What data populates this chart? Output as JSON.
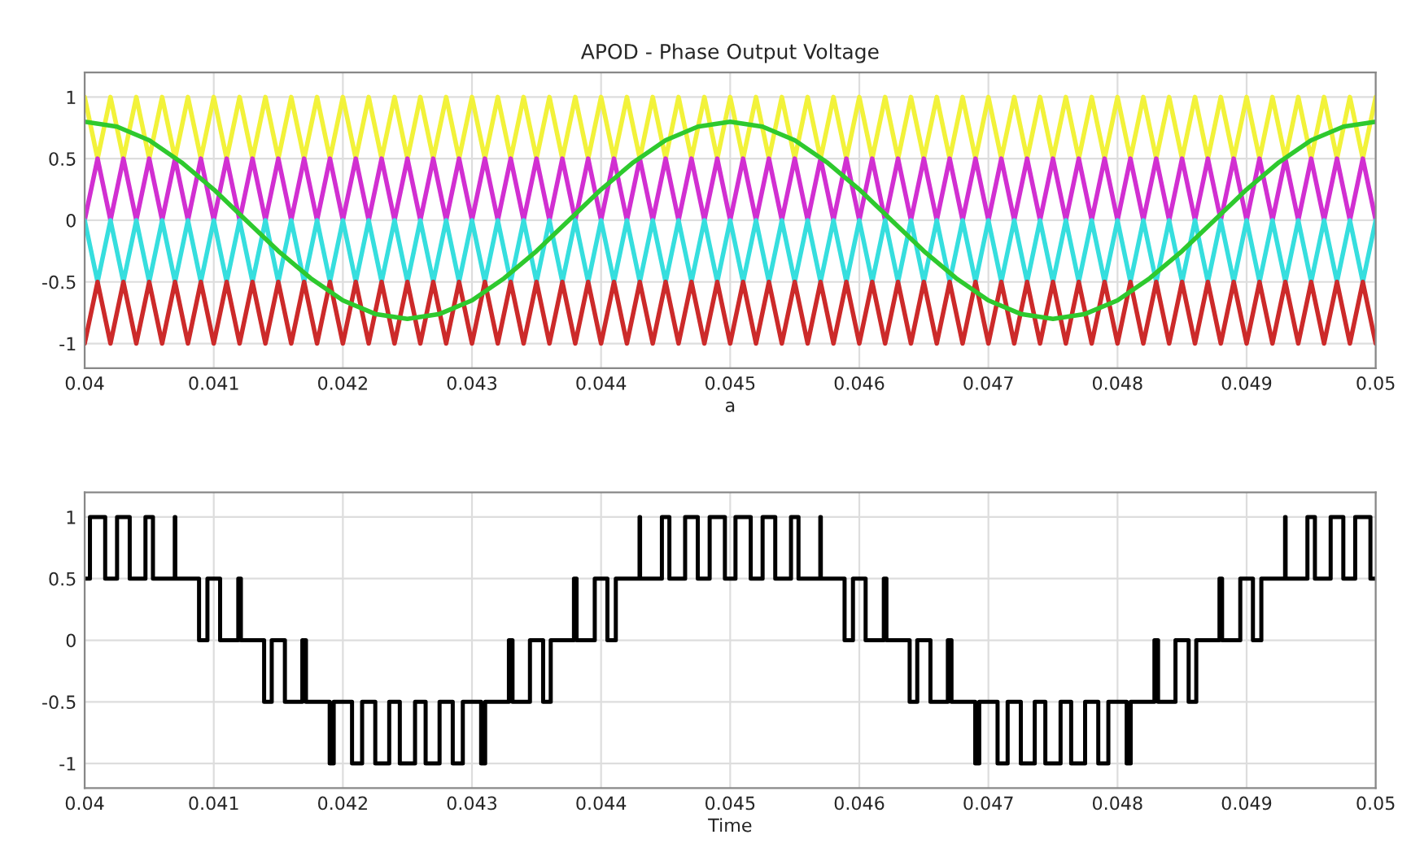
{
  "chart_data": [
    {
      "type": "line",
      "title": "APOD - Phase Output Voltage",
      "xlabel": "a",
      "grid": true,
      "xlim": [
        0.04,
        0.05
      ],
      "ylim": [
        -1.2,
        1.2
      ],
      "xticks": [
        0.04,
        0.041,
        0.042,
        0.043,
        0.044,
        0.045,
        0.046,
        0.047,
        0.048,
        0.049,
        0.05
      ],
      "yticks": [
        -1,
        -0.5,
        0,
        0.5,
        1
      ],
      "x": [
        0.04,
        0.0401,
        0.0402,
        0.0403,
        0.0404,
        0.0405,
        0.0406,
        0.0407,
        0.0408,
        0.0409,
        0.041,
        0.0411,
        0.0412,
        0.0413,
        0.0414,
        0.0415,
        0.0416,
        0.0417,
        0.0418,
        0.0419,
        0.042,
        0.0421,
        0.0422,
        0.0423,
        0.0424,
        0.0425,
        0.0426,
        0.0427,
        0.0428,
        0.0429,
        0.043,
        0.0431,
        0.0432,
        0.0433,
        0.0434,
        0.0435,
        0.0436,
        0.0437,
        0.0438,
        0.0439,
        0.044,
        0.0441,
        0.0442,
        0.0443,
        0.0444,
        0.0445,
        0.0446,
        0.0447,
        0.0448,
        0.0449,
        0.045,
        0.0451,
        0.0452,
        0.0453,
        0.0454,
        0.0455,
        0.0456,
        0.0457,
        0.0458,
        0.0459,
        0.046,
        0.0461,
        0.0462,
        0.0463,
        0.0464,
        0.0465,
        0.0466,
        0.0467,
        0.0468,
        0.0469,
        0.047,
        0.0471,
        0.0472,
        0.0473,
        0.0474,
        0.0475,
        0.0476,
        0.0477,
        0.0478,
        0.0479,
        0.048,
        0.0481,
        0.0482,
        0.0483,
        0.0484,
        0.0485,
        0.0486,
        0.0487,
        0.0488,
        0.0489,
        0.049,
        0.0491,
        0.0492,
        0.0493,
        0.0494,
        0.0495,
        0.0496,
        0.0497,
        0.0498,
        0.0499,
        0.05
      ],
      "series": [
        {
          "color": "#f2f23a",
          "values": [
            1,
            0.5,
            1,
            0.5,
            1,
            0.5,
            1,
            0.5,
            1,
            0.5,
            1,
            0.5,
            1,
            0.5,
            1,
            0.5,
            1,
            0.5,
            1,
            0.5,
            1,
            0.5,
            1,
            0.5,
            1,
            0.5,
            1,
            0.5,
            1,
            0.5,
            1,
            0.5,
            1,
            0.5,
            1,
            0.5,
            1,
            0.5,
            1,
            0.5,
            1,
            0.5,
            1,
            0.5,
            1,
            0.5,
            1,
            0.5,
            1,
            0.5,
            1,
            0.5,
            1,
            0.5,
            1,
            0.5,
            1,
            0.5,
            1,
            0.5,
            1,
            0.5,
            1,
            0.5,
            1,
            0.5,
            1,
            0.5,
            1,
            0.5,
            1,
            0.5,
            1,
            0.5,
            1,
            0.5,
            1,
            0.5,
            1,
            0.5,
            1,
            0.5,
            1,
            0.5,
            1,
            0.5,
            1,
            0.5,
            1,
            0.5,
            1,
            0.5,
            1,
            0.5,
            1,
            0.5,
            1,
            0.5,
            1,
            0.5,
            1
          ]
        },
        {
          "color": "#d12fd1",
          "values": [
            0,
            0.5,
            0,
            0.5,
            0,
            0.5,
            0,
            0.5,
            0,
            0.5,
            0,
            0.5,
            0,
            0.5,
            0,
            0.5,
            0,
            0.5,
            0,
            0.5,
            0,
            0.5,
            0,
            0.5,
            0,
            0.5,
            0,
            0.5,
            0,
            0.5,
            0,
            0.5,
            0,
            0.5,
            0,
            0.5,
            0,
            0.5,
            0,
            0.5,
            0,
            0.5,
            0,
            0.5,
            0,
            0.5,
            0,
            0.5,
            0,
            0.5,
            0,
            0.5,
            0,
            0.5,
            0,
            0.5,
            0,
            0.5,
            0,
            0.5,
            0,
            0.5,
            0,
            0.5,
            0,
            0.5,
            0,
            0.5,
            0,
            0.5,
            0,
            0.5,
            0,
            0.5,
            0,
            0.5,
            0,
            0.5,
            0,
            0.5,
            0,
            0.5,
            0,
            0.5,
            0,
            0.5,
            0,
            0.5,
            0,
            0.5,
            0,
            0.5,
            0,
            0.5,
            0,
            0.5,
            0,
            0.5,
            0,
            0.5,
            0
          ]
        },
        {
          "color": "#36dede",
          "values": [
            0,
            -0.5,
            0,
            -0.5,
            0,
            -0.5,
            0,
            -0.5,
            0,
            -0.5,
            0,
            -0.5,
            0,
            -0.5,
            0,
            -0.5,
            0,
            -0.5,
            0,
            -0.5,
            0,
            -0.5,
            0,
            -0.5,
            0,
            -0.5,
            0,
            -0.5,
            0,
            -0.5,
            0,
            -0.5,
            0,
            -0.5,
            0,
            -0.5,
            0,
            -0.5,
            0,
            -0.5,
            0,
            -0.5,
            0,
            -0.5,
            0,
            -0.5,
            0,
            -0.5,
            0,
            -0.5,
            0,
            -0.5,
            0,
            -0.5,
            0,
            -0.5,
            0,
            -0.5,
            0,
            -0.5,
            0,
            -0.5,
            0,
            -0.5,
            0,
            -0.5,
            0,
            -0.5,
            0,
            -0.5,
            0,
            -0.5,
            0,
            -0.5,
            0,
            -0.5,
            0,
            -0.5,
            0,
            -0.5,
            0,
            -0.5,
            0,
            -0.5,
            0,
            -0.5,
            0,
            -0.5,
            0,
            -0.5,
            0,
            -0.5,
            0,
            -0.5,
            0,
            -0.5,
            0,
            -0.5,
            0,
            -0.5,
            0
          ]
        },
        {
          "color": "#cc2a2a",
          "values": [
            -1,
            -0.5,
            -1,
            -0.5,
            -1,
            -0.5,
            -1,
            -0.5,
            -1,
            -0.5,
            -1,
            -0.5,
            -1,
            -0.5,
            -1,
            -0.5,
            -1,
            -0.5,
            -1,
            -0.5,
            -1,
            -0.5,
            -1,
            -0.5,
            -1,
            -0.5,
            -1,
            -0.5,
            -1,
            -0.5,
            -1,
            -0.5,
            -1,
            -0.5,
            -1,
            -0.5,
            -1,
            -0.5,
            -1,
            -0.5,
            -1,
            -0.5,
            -1,
            -0.5,
            -1,
            -0.5,
            -1,
            -0.5,
            -1,
            -0.5,
            -1,
            -0.5,
            -1,
            -0.5,
            -1,
            -0.5,
            -1,
            -0.5,
            -1,
            -0.5,
            -1,
            -0.5,
            -1,
            -0.5,
            -1,
            -0.5,
            -1,
            -0.5,
            -1,
            -0.5,
            -1,
            -0.5,
            -1,
            -0.5,
            -1,
            -0.5,
            -1,
            -0.5,
            -1,
            -0.5,
            -1,
            -0.5,
            -1,
            -0.5,
            -1,
            -0.5,
            -1,
            -0.5,
            -1,
            -0.5,
            -1,
            -0.5,
            -1,
            -0.5,
            -1,
            -0.5,
            -1,
            -0.5,
            -1,
            -0.5,
            -1
          ]
        },
        {
          "color": "#2ec92e",
          "x": [
            0.04,
            0.04025,
            0.0405,
            0.04075,
            0.041,
            0.04125,
            0.0415,
            0.04175,
            0.042,
            0.04225,
            0.0425,
            0.04275,
            0.043,
            0.04325,
            0.0435,
            0.04375,
            0.044,
            0.04425,
            0.0445,
            0.04475,
            0.045,
            0.04525,
            0.0455,
            0.04575,
            0.046,
            0.04625,
            0.0465,
            0.04675,
            0.047,
            0.04725,
            0.0475,
            0.04775,
            0.048,
            0.04825,
            0.0485,
            0.04875,
            0.049,
            0.04925,
            0.0495,
            0.04975,
            0.05
          ],
          "values": [
            0.8,
            0.76,
            0.65,
            0.47,
            0.25,
            0,
            -0.25,
            -0.47,
            -0.65,
            -0.76,
            -0.8,
            -0.76,
            -0.65,
            -0.47,
            -0.25,
            0,
            0.25,
            0.47,
            0.65,
            0.76,
            0.8,
            0.76,
            0.65,
            0.47,
            0.25,
            0,
            -0.25,
            -0.47,
            -0.65,
            -0.76,
            -0.8,
            -0.76,
            -0.65,
            -0.47,
            -0.25,
            0,
            0.25,
            0.47,
            0.65,
            0.76,
            0.8
          ]
        }
      ]
    },
    {
      "type": "step",
      "xlabel": "Time",
      "grid": true,
      "xlim": [
        0.04,
        0.05
      ],
      "ylim": [
        -1.2,
        1.2
      ],
      "xticks": [
        0.04,
        0.041,
        0.042,
        0.043,
        0.044,
        0.045,
        0.046,
        0.047,
        0.048,
        0.049,
        0.05
      ],
      "yticks": [
        -1,
        -0.5,
        0,
        0.5,
        1
      ],
      "series": [
        {
          "color": "#000000",
          "x": [
            0.04,
            0.040041,
            0.040159,
            0.040251,
            0.040349,
            0.040471,
            0.040529,
            0.040698,
            0.040702,
            0.040886,
            0.040951,
            0.041049,
            0.04119,
            0.04121,
            0.04139,
            0.041449,
            0.041551,
            0.041686,
            0.041714,
            0.041898,
            0.041929,
            0.042071,
            0.042149,
            0.042251,
            0.042359,
            0.042441,
            0.042559,
            0.042641,
            0.042749,
            0.042851,
            0.042929,
            0.043071,
            0.043102,
            0.043286,
            0.043314,
            0.043449,
            0.043551,
            0.04361,
            0.04379,
            0.04381,
            0.043951,
            0.044049,
            0.044114,
            0.044298,
            0.044302,
            0.044471,
            0.044529,
            0.044651,
            0.044749,
            0.044841,
            0.044959,
            0.045041,
            0.045159,
            0.045251,
            0.045349,
            0.045471,
            0.045529,
            0.045698,
            0.045702,
            0.045886,
            0.045951,
            0.046049,
            0.04619,
            0.04621,
            0.04639,
            0.046449,
            0.046551,
            0.046686,
            0.046714,
            0.046898,
            0.046929,
            0.047071,
            0.047149,
            0.047251,
            0.047359,
            0.047441,
            0.047559,
            0.047641,
            0.047749,
            0.047851,
            0.047929,
            0.048071,
            0.048102,
            0.048286,
            0.048314,
            0.048449,
            0.048551,
            0.04861,
            0.04879,
            0.04881,
            0.048951,
            0.049049,
            0.049114,
            0.049298,
            0.049302,
            0.049471,
            0.049529,
            0.049651,
            0.049749,
            0.049841,
            0.049959,
            0.05
          ],
          "values": [
            0.5,
            1,
            0.5,
            1,
            0.5,
            1,
            0.5,
            1,
            0.5,
            0,
            0.5,
            0,
            0.5,
            0,
            -0.5,
            0,
            -0.5,
            0,
            -0.5,
            -1,
            -0.5,
            -1,
            -0.5,
            -1,
            -0.5,
            -1,
            -0.5,
            -1,
            -0.5,
            -1,
            -0.5,
            -1,
            -0.5,
            0,
            -0.5,
            0,
            -0.5,
            0,
            0.5,
            0,
            0.5,
            0,
            0.5,
            1,
            0.5,
            1,
            0.5,
            1,
            0.5,
            1,
            0.5,
            1,
            0.5,
            1,
            0.5,
            1,
            0.5,
            1,
            0.5,
            0,
            0.5,
            0,
            0.5,
            0,
            -0.5,
            0,
            -0.5,
            0,
            -0.5,
            -1,
            -0.5,
            -1,
            -0.5,
            -1,
            -0.5,
            -1,
            -0.5,
            -1,
            -0.5,
            -1,
            -0.5,
            -1,
            -0.5,
            0,
            -0.5,
            0,
            -0.5,
            0,
            0.5,
            0,
            0.5,
            0,
            0.5,
            1,
            0.5,
            1,
            0.5,
            1,
            0.5,
            1,
            0.5,
            0.5
          ]
        }
      ]
    }
  ]
}
